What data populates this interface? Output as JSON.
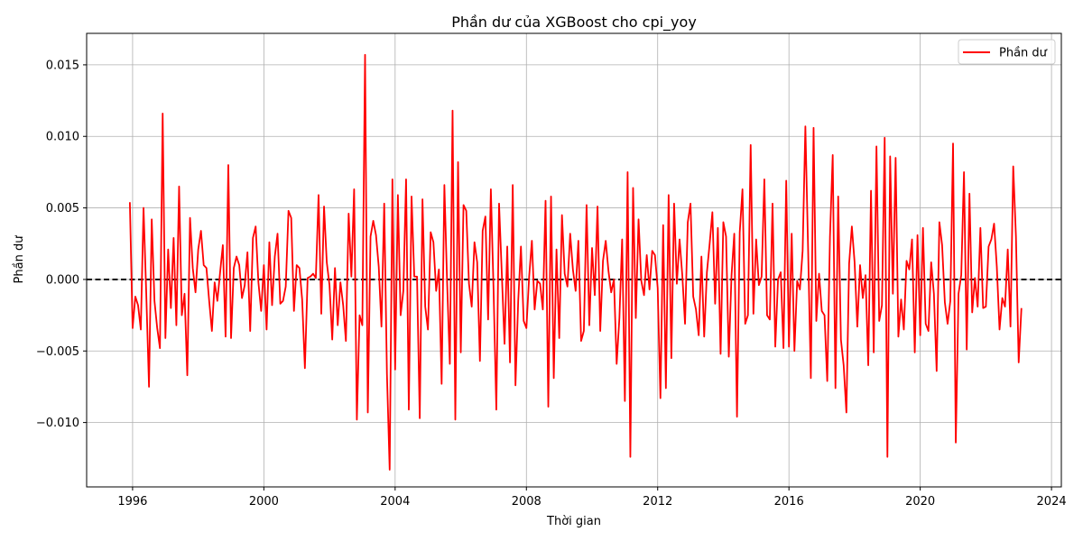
{
  "chart_data": {
    "type": "line",
    "title": "Phần dư của XGBoost cho cpi_yoy",
    "xlabel": "Thời gian",
    "ylabel": "Phần dư",
    "xlim": [
      1994.6,
      2024.3
    ],
    "ylim": [
      -0.0145,
      0.0172
    ],
    "x_ticks": [
      1996,
      2000,
      2004,
      2008,
      2012,
      2016,
      2020,
      2024
    ],
    "y_ticks": [
      -0.01,
      -0.005,
      0.0,
      0.005,
      0.01,
      0.015
    ],
    "y_tick_labels": [
      "−0.010",
      "−0.005",
      "0.000",
      "0.005",
      "0.010",
      "0.015"
    ],
    "grid": true,
    "legend_position": "top-right",
    "reference_line": {
      "y": 0,
      "style": "dashed",
      "color": "#000000"
    },
    "series": [
      {
        "name": "Phần dư",
        "color": "#ff0000",
        "x_start": 1995.917,
        "step_months": 1,
        "values": [
          0.0054,
          -0.0034,
          -0.0012,
          -0.0018,
          -0.0035,
          0.005,
          -0.001,
          -0.0075,
          0.0042,
          -0.0015,
          -0.0034,
          -0.0048,
          0.0116,
          -0.0041,
          0.0021,
          -0.002,
          0.0029,
          -0.0032,
          0.0065,
          -0.0025,
          -0.001,
          -0.0067,
          0.0043,
          0.0008,
          -0.0009,
          0.0021,
          0.0034,
          0.001,
          0.0008,
          -0.0015,
          -0.0036,
          -0.0002,
          -0.0015,
          0.0005,
          0.0024,
          -0.004,
          0.008,
          -0.0041,
          0.0008,
          0.0016,
          0.001,
          -0.0013,
          -0.0004,
          0.0019,
          -0.0036,
          0.0029,
          0.0037,
          -0.0002,
          -0.0022,
          0.001,
          -0.0035,
          0.0026,
          -0.0018,
          0.0016,
          0.0032,
          -0.0017,
          -0.0015,
          -0.0005,
          0.0048,
          0.0043,
          -0.0022,
          0.001,
          0.0008,
          -0.0014,
          -0.0062,
          0.0001,
          0.0002,
          0.0004,
          0.0001,
          0.0059,
          -0.0024,
          0.0051,
          0.0012,
          -0.0004,
          -0.0042,
          0.0008,
          -0.0032,
          -0.0002,
          -0.0018,
          -0.0043,
          0.0046,
          0.0002,
          0.0063,
          -0.0098,
          -0.0025,
          -0.0032,
          0.0157,
          -0.0093,
          0.003,
          0.0041,
          0.0031,
          0.0009,
          -0.0033,
          0.0053,
          -0.0066,
          -0.0133,
          0.007,
          -0.0063,
          0.0059,
          -0.0025,
          -0.0008,
          0.007,
          -0.0091,
          0.0058,
          0.0002,
          0.0002,
          -0.0097,
          0.0056,
          -0.0019,
          -0.0035,
          0.0033,
          0.0026,
          -0.0008,
          0.0007,
          -0.0073,
          0.0066,
          -0.0002,
          -0.0059,
          0.0118,
          -0.0098,
          0.0082,
          -0.0051,
          0.0052,
          0.0048,
          -0.0003,
          -0.0019,
          0.0026,
          0.0012,
          -0.0057,
          0.0034,
          0.0044,
          -0.0028,
          0.0063,
          -0.0008,
          -0.0091,
          0.0053,
          0.0004,
          -0.0045,
          0.0023,
          -0.0058,
          0.0066,
          -0.0074,
          -0.0015,
          0.0023,
          -0.0029,
          -0.0034,
          0.0002,
          0.0027,
          -0.0021,
          -0.0001,
          -0.0003,
          -0.0021,
          0.0055,
          -0.0089,
          0.0058,
          -0.0069,
          0.0021,
          -0.0041,
          0.0045,
          0.0004,
          -0.0005,
          0.0032,
          0.0007,
          -0.0008,
          0.0027,
          -0.0043,
          -0.0036,
          0.0052,
          -0.0032,
          0.0022,
          -0.0011,
          0.0051,
          -0.0036,
          0.0013,
          0.0027,
          0.0006,
          -0.0009,
          0.0,
          -0.0059,
          -0.0027,
          0.0028,
          -0.0085,
          0.0075,
          -0.0124,
          0.0064,
          -0.0027,
          0.0042,
          -0.0001,
          -0.0011,
          0.0017,
          -0.0007,
          0.002,
          0.0017,
          -0.0006,
          -0.0083,
          0.0038,
          -0.0076,
          0.0059,
          -0.0055,
          0.0053,
          -0.0003,
          0.0028,
          0.0003,
          -0.0031,
          0.004,
          0.0053,
          -0.0012,
          -0.0021,
          -0.0039,
          0.0016,
          -0.004,
          0.0005,
          0.0025,
          0.0047,
          -0.0017,
          0.0036,
          -0.0052,
          0.004,
          0.003,
          -0.0054,
          0.0003,
          0.0032,
          -0.0096,
          0.0033,
          0.0063,
          -0.0031,
          -0.0025,
          0.0094,
          -0.0024,
          0.0028,
          -0.0004,
          0.0002,
          0.007,
          -0.0025,
          -0.0028,
          0.0053,
          -0.0047,
          0.0,
          0.0005,
          -0.0048,
          0.0069,
          -0.0047,
          0.0032,
          -0.005,
          -0.0001,
          -0.0007,
          0.002,
          0.0107,
          0.0021,
          -0.0069,
          0.0106,
          -0.0029,
          0.0004,
          -0.0022,
          -0.0025,
          -0.0071,
          0.003,
          0.0087,
          -0.0076,
          0.0058,
          -0.0042,
          -0.006,
          -0.0093,
          0.0011,
          0.0037,
          0.0012,
          -0.0033,
          0.001,
          -0.0013,
          0.0003,
          -0.006,
          0.0062,
          -0.0051,
          0.0093,
          -0.0029,
          -0.0018,
          0.0099,
          -0.0124,
          0.0086,
          -0.001,
          0.0085,
          -0.004,
          -0.0014,
          -0.0035,
          0.0013,
          0.0007,
          0.0028,
          -0.0051,
          0.0031,
          -0.0039,
          0.0036,
          -0.0031,
          -0.0036,
          0.0012,
          -0.001,
          -0.0064,
          0.004,
          0.0024,
          -0.0016,
          -0.0031,
          -0.0015,
          0.0095,
          -0.0114,
          -0.001,
          0.0003,
          0.0075,
          -0.0049,
          0.006,
          -0.0023,
          0.0001,
          -0.0019,
          0.0036,
          -0.002,
          -0.0019,
          0.0023,
          0.0028,
          0.0039,
          0.0009,
          -0.0035,
          -0.0013,
          -0.0019,
          0.0021,
          -0.0033,
          0.0079,
          0.003,
          -0.0058,
          -0.002
        ]
      }
    ]
  }
}
